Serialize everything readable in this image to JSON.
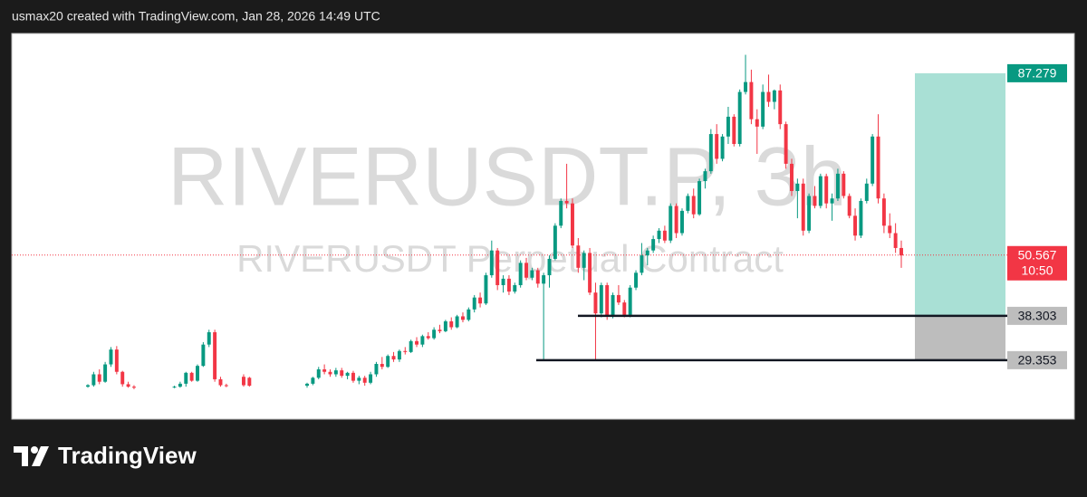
{
  "header": {
    "text": "usmax20 created with TradingView.com, Jan 28, 2026 14:49 UTC"
  },
  "brand": "TradingView",
  "chart_data": {
    "type": "candlestick",
    "title": "RIVERUSDT.P, 3h",
    "subtitle": "RIVERUSDT Perpetual Contract",
    "ylim": [
      17.45,
      95.3
    ],
    "up_color": "#089981",
    "down_color": "#f23645",
    "last_price": 50.567,
    "countdown": "10:50",
    "position": {
      "target": 87.279,
      "entry": 38.303,
      "stop": 29.353
    },
    "ohlc": [
      [
        24,
        24.5,
        23.8,
        24.3
      ],
      [
        24.3,
        27,
        24,
        26.5
      ],
      [
        26.5,
        27.5,
        24.5,
        25
      ],
      [
        25,
        29,
        24.8,
        28.5
      ],
      [
        28.5,
        32,
        28,
        31.5
      ],
      [
        31.5,
        32.2,
        26.5,
        27
      ],
      [
        27,
        27.2,
        24,
        24.5
      ],
      [
        24.5,
        25,
        23.8,
        24
      ],
      [
        24,
        24.3,
        23.5,
        23.8
      ],
      null,
      null,
      null,
      null,
      null,
      null,
      [
        24,
        24.2,
        23.7,
        24
      ],
      [
        24,
        25,
        23.8,
        24.6
      ],
      [
        24.6,
        27,
        24,
        26.8
      ],
      [
        26.8,
        27,
        25,
        25.2
      ],
      [
        25.2,
        28.5,
        25,
        28.2
      ],
      [
        28.2,
        33,
        28,
        32.5
      ],
      [
        32.5,
        35.5,
        32,
        35
      ],
      [
        35,
        35.5,
        25,
        25.5
      ],
      [
        25.5,
        26,
        24,
        24.3
      ],
      [
        24.3,
        24.6,
        23.9,
        24.2
      ],
      null,
      null,
      [
        26,
        26.5,
        24,
        24.3
      ],
      [
        25.8,
        26,
        24,
        24.2
      ],
      null,
      null,
      null,
      null,
      null,
      null,
      null,
      null,
      null,
      [
        24.2,
        24.8,
        23.8,
        24.6
      ],
      [
        24.6,
        26,
        24.3,
        25.8
      ],
      [
        25.8,
        28,
        25.5,
        27.5
      ],
      [
        27.5,
        28.5,
        26.5,
        27
      ],
      [
        27,
        27.5,
        26,
        26.5
      ],
      [
        26.5,
        27.8,
        26,
        27.3
      ],
      [
        27.3,
        27.8,
        25.8,
        26.2
      ],
      [
        26.2,
        27,
        25.5,
        26.8
      ],
      [
        26.8,
        27.2,
        24.8,
        25.2
      ],
      [
        25.2,
        26.2,
        24.5,
        25.8
      ],
      [
        25.8,
        26.2,
        24.2,
        24.8
      ],
      [
        24.8,
        27,
        24.5,
        26.5
      ],
      [
        26.5,
        29,
        26,
        28.6
      ],
      [
        28.6,
        30,
        27.5,
        28
      ],
      [
        28,
        30.5,
        27.8,
        30.2
      ],
      [
        30.2,
        31,
        29,
        29.5
      ],
      [
        29.5,
        31.5,
        29,
        31.2
      ],
      [
        31.2,
        32,
        30.5,
        31
      ],
      [
        31,
        33.5,
        30.8,
        33.2
      ],
      [
        33.2,
        34,
        32,
        32.5
      ],
      [
        32.5,
        34.5,
        32,
        34.2
      ],
      [
        34.2,
        35,
        33.5,
        33.8
      ],
      [
        33.8,
        36,
        33.5,
        35.5
      ],
      [
        35.5,
        36.5,
        34.8,
        35.2
      ],
      [
        35.2,
        37.5,
        35,
        37.2
      ],
      [
        37.2,
        38,
        35.5,
        36
      ],
      [
        36,
        38.5,
        35.8,
        38.2
      ],
      [
        38.2,
        39,
        37,
        37.5
      ],
      [
        37.5,
        40,
        37.2,
        39.6
      ],
      [
        39.6,
        42.5,
        39,
        42
      ],
      [
        42,
        43,
        40,
        40.8
      ],
      [
        40.8,
        47,
        40.5,
        46.5
      ],
      [
        46.5,
        53.5,
        46,
        51.5
      ],
      [
        51.5,
        52,
        43.5,
        44.5
      ],
      [
        44.5,
        46.5,
        43,
        45.8
      ],
      [
        45.8,
        46.5,
        42.5,
        43.2
      ],
      [
        43.2,
        45,
        42.8,
        44.5
      ],
      [
        44.5,
        49.5,
        44,
        49
      ],
      [
        49,
        50,
        45.5,
        46
      ],
      [
        46,
        48,
        45.5,
        47.5
      ],
      [
        47.5,
        48,
        44,
        44.8
      ],
      [
        44.8,
        47,
        29.5,
        46.5
      ],
      [
        46.5,
        50.5,
        44,
        49.8
      ],
      [
        49.8,
        57,
        49.5,
        56.5
      ],
      [
        56.5,
        62,
        56,
        61.5
      ],
      [
        61.5,
        69,
        60,
        61
      ],
      [
        61,
        62,
        52,
        52.5
      ],
      [
        52.5,
        54,
        47,
        48
      ],
      [
        48,
        51.5,
        45.5,
        51
      ],
      [
        51,
        52,
        42.5,
        43
      ],
      [
        43,
        45,
        29.5,
        38.8
      ],
      [
        38.8,
        45,
        38,
        44.5
      ],
      [
        44.5,
        45,
        37.5,
        38.2
      ],
      [
        38.2,
        43,
        37.8,
        42.5
      ],
      [
        42.5,
        44.5,
        40.5,
        41
      ],
      [
        41,
        41.5,
        38,
        38.5
      ],
      [
        38.5,
        44.5,
        38,
        44
      ],
      [
        44,
        47.5,
        43.5,
        47
      ],
      [
        47,
        53,
        46.5,
        50.5
      ],
      [
        50.5,
        52,
        48.5,
        51.5
      ],
      [
        51.5,
        54.5,
        51,
        53.8
      ],
      [
        53.8,
        56,
        53,
        55.5
      ],
      [
        55.5,
        56.5,
        53,
        53.5
      ],
      [
        53.5,
        61,
        53,
        60.5
      ],
      [
        60.5,
        61,
        54,
        55
      ],
      [
        55,
        60,
        54.5,
        59.5
      ],
      [
        59.5,
        63,
        59,
        62.5
      ],
      [
        62.5,
        64,
        58,
        58.8
      ],
      [
        58.8,
        66,
        58.5,
        65.5
      ],
      [
        65.5,
        68,
        64,
        67.5
      ],
      [
        67.5,
        76,
        67,
        75
      ],
      [
        75,
        77,
        69,
        70
      ],
      [
        70,
        75,
        69.5,
        74.5
      ],
      [
        74.5,
        80.5,
        73,
        78.5
      ],
      [
        78.5,
        79,
        72.5,
        73
      ],
      [
        73,
        84,
        72.5,
        83.5
      ],
      [
        83.5,
        91,
        83,
        85.5
      ],
      [
        85.5,
        88,
        77,
        78
      ],
      [
        78,
        80,
        71,
        76.5
      ],
      [
        76.5,
        85,
        76,
        83.5
      ],
      [
        83.5,
        87,
        80.5,
        81.5
      ],
      [
        81.5,
        84,
        80,
        83.8
      ],
      [
        83.8,
        85,
        76,
        77
      ],
      [
        77,
        77.5,
        68,
        69
      ],
      [
        69,
        70,
        62.5,
        63.5
      ],
      [
        63.5,
        66,
        58,
        65
      ],
      [
        65,
        66,
        54.5,
        55.5
      ],
      [
        55.5,
        63,
        55,
        62.5
      ],
      [
        62.5,
        64.5,
        60,
        60.5
      ],
      [
        60.5,
        67,
        60,
        66.5
      ],
      [
        66.5,
        67,
        60,
        61
      ],
      [
        61,
        63,
        57.5,
        62
      ],
      [
        62,
        68,
        61.5,
        67
      ],
      [
        67,
        67.5,
        62,
        62.5
      ],
      [
        62.5,
        63,
        58,
        58.5
      ],
      [
        58.5,
        60,
        53.5,
        54.5
      ],
      [
        54.5,
        62,
        54,
        61.5
      ],
      [
        61.5,
        66,
        61,
        65
      ],
      [
        65,
        75,
        64.5,
        74.5
      ],
      [
        74.5,
        79,
        61,
        62
      ],
      [
        62,
        63,
        55,
        56.5
      ],
      [
        56.5,
        59,
        54,
        55
      ],
      [
        55,
        57,
        51,
        52
      ],
      [
        52,
        53.5,
        48,
        50.5
      ]
    ]
  }
}
